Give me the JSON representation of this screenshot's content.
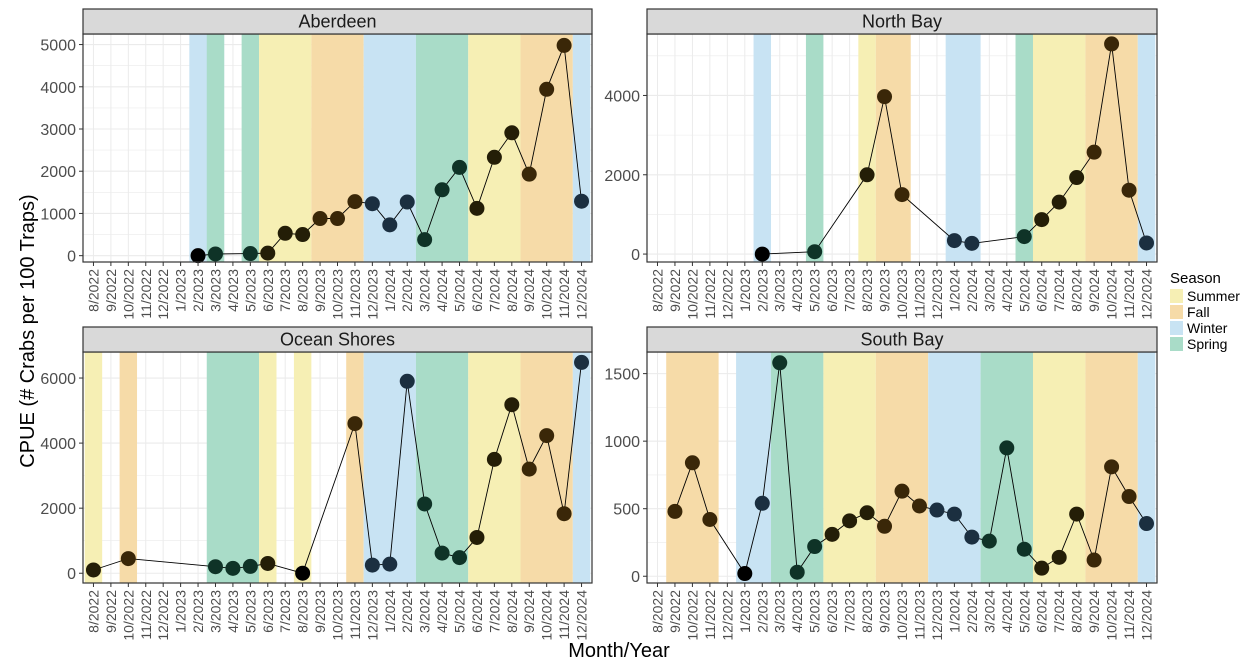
{
  "xlabel": "Month/Year",
  "ylabel": "CPUE (# Crabs per 100 Traps)",
  "legend": {
    "title": "Season",
    "items": [
      {
        "label": "Summer",
        "color": "#f6efb4"
      },
      {
        "label": "Fall",
        "color": "#f6dba8"
      },
      {
        "label": "Winter",
        "color": "#c8e3f3"
      },
      {
        "label": "Spring",
        "color": "#a9dcc8"
      }
    ]
  },
  "months": [
    "8/2022",
    "9/2022",
    "10/2022",
    "11/2022",
    "12/2022",
    "1/2023",
    "2/2023",
    "3/2023",
    "4/2023",
    "5/2023",
    "6/2023",
    "7/2023",
    "8/2023",
    "9/2023",
    "10/2023",
    "11/2023",
    "12/2023",
    "1/2024",
    "2/2024",
    "3/2024",
    "4/2024",
    "5/2024",
    "6/2024",
    "7/2024",
    "8/2024",
    "9/2024",
    "10/2024",
    "11/2024",
    "12/2024"
  ],
  "point_colors": {
    "Summer": "#241e07",
    "Fall": "#3a2708",
    "Winter": "#1b2f40",
    "Spring": "#0f3327",
    "start": "#000000"
  },
  "chart_data": [
    {
      "type": "line",
      "title": "Aberdeen",
      "ylim": [
        -150,
        5250
      ],
      "yticks": [
        0,
        1000,
        2000,
        3000,
        4000,
        5000
      ],
      "seasons": [
        {
          "season": "Winter",
          "start": "2/2023",
          "end": "3/2023"
        },
        {
          "season": "Spring",
          "start": "3/2023",
          "end": "3/2023"
        },
        {
          "season": "Spring",
          "start": "5/2023",
          "end": "5/2023"
        },
        {
          "season": "Summer",
          "start": "6/2023",
          "end": "8/2023"
        },
        {
          "season": "Fall",
          "start": "9/2023",
          "end": "11/2023"
        },
        {
          "season": "Winter",
          "start": "12/2023",
          "end": "2/2024"
        },
        {
          "season": "Spring",
          "start": "3/2024",
          "end": "5/2024"
        },
        {
          "season": "Summer",
          "start": "6/2024",
          "end": "8/2024"
        },
        {
          "season": "Fall",
          "start": "9/2024",
          "end": "11/2024"
        },
        {
          "season": "Winter",
          "start": "12/2024",
          "end": "12/2024"
        }
      ],
      "points": [
        {
          "x": "2/2023",
          "y": 0,
          "season": "start"
        },
        {
          "x": "3/2023",
          "y": 40,
          "season": "Spring"
        },
        {
          "x": "5/2023",
          "y": 50,
          "season": "Spring"
        },
        {
          "x": "6/2023",
          "y": 60,
          "season": "Summer"
        },
        {
          "x": "7/2023",
          "y": 530,
          "season": "Summer"
        },
        {
          "x": "8/2023",
          "y": 500,
          "season": "Summer"
        },
        {
          "x": "9/2023",
          "y": 880,
          "season": "Fall"
        },
        {
          "x": "10/2023",
          "y": 880,
          "season": "Fall"
        },
        {
          "x": "11/2023",
          "y": 1280,
          "season": "Fall"
        },
        {
          "x": "12/2023",
          "y": 1230,
          "season": "Winter"
        },
        {
          "x": "1/2024",
          "y": 730,
          "season": "Winter"
        },
        {
          "x": "2/2024",
          "y": 1270,
          "season": "Winter"
        },
        {
          "x": "3/2024",
          "y": 380,
          "season": "Spring"
        },
        {
          "x": "4/2024",
          "y": 1560,
          "season": "Spring"
        },
        {
          "x": "5/2024",
          "y": 2090,
          "season": "Spring"
        },
        {
          "x": "6/2024",
          "y": 1120,
          "season": "Summer"
        },
        {
          "x": "7/2024",
          "y": 2330,
          "season": "Summer"
        },
        {
          "x": "8/2024",
          "y": 2910,
          "season": "Summer"
        },
        {
          "x": "9/2024",
          "y": 1930,
          "season": "Fall"
        },
        {
          "x": "10/2024",
          "y": 3940,
          "season": "Fall"
        },
        {
          "x": "11/2024",
          "y": 4980,
          "season": "Fall"
        },
        {
          "x": "12/2024",
          "y": 1290,
          "season": "Winter"
        }
      ]
    },
    {
      "type": "line",
      "title": "North Bay",
      "ylim": [
        -200,
        5550
      ],
      "yticks": [
        0,
        2000,
        4000
      ],
      "seasons": [
        {
          "season": "Winter",
          "start": "2/2023",
          "end": "2/2023"
        },
        {
          "season": "Spring",
          "start": "5/2023",
          "end": "5/2023"
        },
        {
          "season": "Summer",
          "start": "8/2023",
          "end": "8/2023"
        },
        {
          "season": "Fall",
          "start": "9/2023",
          "end": "10/2023"
        },
        {
          "season": "Winter",
          "start": "1/2024",
          "end": "2/2024"
        },
        {
          "season": "Spring",
          "start": "5/2024",
          "end": "5/2024"
        },
        {
          "season": "Summer",
          "start": "6/2024",
          "end": "8/2024"
        },
        {
          "season": "Fall",
          "start": "9/2024",
          "end": "11/2024"
        },
        {
          "season": "Winter",
          "start": "12/2024",
          "end": "12/2024"
        }
      ],
      "points": [
        {
          "x": "2/2023",
          "y": 0,
          "season": "start"
        },
        {
          "x": "5/2023",
          "y": 60,
          "season": "Spring"
        },
        {
          "x": "8/2023",
          "y": 2000,
          "season": "Summer"
        },
        {
          "x": "9/2023",
          "y": 3970,
          "season": "Fall"
        },
        {
          "x": "10/2023",
          "y": 1500,
          "season": "Fall"
        },
        {
          "x": "1/2024",
          "y": 340,
          "season": "Winter"
        },
        {
          "x": "2/2024",
          "y": 270,
          "season": "Winter"
        },
        {
          "x": "5/2024",
          "y": 440,
          "season": "Spring"
        },
        {
          "x": "6/2024",
          "y": 870,
          "season": "Summer"
        },
        {
          "x": "7/2024",
          "y": 1310,
          "season": "Summer"
        },
        {
          "x": "8/2024",
          "y": 1930,
          "season": "Summer"
        },
        {
          "x": "9/2024",
          "y": 2570,
          "season": "Fall"
        },
        {
          "x": "10/2024",
          "y": 5300,
          "season": "Fall"
        },
        {
          "x": "11/2024",
          "y": 1610,
          "season": "Fall"
        },
        {
          "x": "12/2024",
          "y": 280,
          "season": "Winter"
        }
      ]
    },
    {
      "type": "line",
      "title": "Ocean Shores",
      "ylim": [
        -300,
        6800
      ],
      "yticks": [
        0,
        2000,
        4000,
        6000
      ],
      "seasons": [
        {
          "season": "Summer",
          "start": "8/2022",
          "end": "8/2022"
        },
        {
          "season": "Fall",
          "start": "10/2022",
          "end": "10/2022"
        },
        {
          "season": "Spring",
          "start": "3/2023",
          "end": "5/2023"
        },
        {
          "season": "Summer",
          "start": "6/2023",
          "end": "6/2023"
        },
        {
          "season": "Summer",
          "start": "8/2023",
          "end": "8/2023"
        },
        {
          "season": "Fall",
          "start": "11/2023",
          "end": "11/2023"
        },
        {
          "season": "Winter",
          "start": "12/2023",
          "end": "2/2024"
        },
        {
          "season": "Spring",
          "start": "3/2024",
          "end": "5/2024"
        },
        {
          "season": "Summer",
          "start": "6/2024",
          "end": "8/2024"
        },
        {
          "season": "Fall",
          "start": "9/2024",
          "end": "11/2024"
        },
        {
          "season": "Winter",
          "start": "12/2024",
          "end": "12/2024"
        }
      ],
      "points": [
        {
          "x": "8/2022",
          "y": 100,
          "season": "Summer"
        },
        {
          "x": "10/2022",
          "y": 450,
          "season": "Fall"
        },
        {
          "x": "3/2023",
          "y": 200,
          "season": "Spring"
        },
        {
          "x": "4/2023",
          "y": 150,
          "season": "Spring"
        },
        {
          "x": "5/2023",
          "y": 210,
          "season": "Spring"
        },
        {
          "x": "6/2023",
          "y": 300,
          "season": "Summer"
        },
        {
          "x": "8/2023",
          "y": 0,
          "season": "start"
        },
        {
          "x": "11/2023",
          "y": 4600,
          "season": "Fall"
        },
        {
          "x": "12/2023",
          "y": 250,
          "season": "Winter"
        },
        {
          "x": "1/2024",
          "y": 280,
          "season": "Winter"
        },
        {
          "x": "2/2024",
          "y": 5900,
          "season": "Winter"
        },
        {
          "x": "3/2024",
          "y": 2130,
          "season": "Spring"
        },
        {
          "x": "4/2024",
          "y": 620,
          "season": "Spring"
        },
        {
          "x": "5/2024",
          "y": 480,
          "season": "Spring"
        },
        {
          "x": "6/2024",
          "y": 1100,
          "season": "Summer"
        },
        {
          "x": "7/2024",
          "y": 3500,
          "season": "Summer"
        },
        {
          "x": "8/2024",
          "y": 5180,
          "season": "Summer"
        },
        {
          "x": "9/2024",
          "y": 3200,
          "season": "Fall"
        },
        {
          "x": "10/2024",
          "y": 4230,
          "season": "Fall"
        },
        {
          "x": "11/2024",
          "y": 1830,
          "season": "Fall"
        },
        {
          "x": "12/2024",
          "y": 6480,
          "season": "Winter"
        }
      ]
    },
    {
      "type": "line",
      "title": "South Bay",
      "ylim": [
        -50,
        1660
      ],
      "yticks": [
        0,
        500,
        1000,
        1500
      ],
      "seasons": [
        {
          "season": "Fall",
          "start": "9/2022",
          "end": "11/2022"
        },
        {
          "season": "Winter",
          "start": "1/2023",
          "end": "2/2023"
        },
        {
          "season": "Spring",
          "start": "3/2023",
          "end": "5/2023"
        },
        {
          "season": "Summer",
          "start": "6/2023",
          "end": "8/2023"
        },
        {
          "season": "Fall",
          "start": "9/2023",
          "end": "11/2023"
        },
        {
          "season": "Winter",
          "start": "12/2023",
          "end": "2/2024"
        },
        {
          "season": "Spring",
          "start": "3/2024",
          "end": "5/2024"
        },
        {
          "season": "Summer",
          "start": "6/2024",
          "end": "8/2024"
        },
        {
          "season": "Fall",
          "start": "9/2024",
          "end": "11/2024"
        },
        {
          "season": "Winter",
          "start": "12/2024",
          "end": "12/2024"
        }
      ],
      "points": [
        {
          "x": "9/2022",
          "y": 480,
          "season": "Fall"
        },
        {
          "x": "10/2022",
          "y": 840,
          "season": "Fall"
        },
        {
          "x": "11/2022",
          "y": 420,
          "season": "Fall"
        },
        {
          "x": "1/2023",
          "y": 20,
          "season": "start"
        },
        {
          "x": "2/2023",
          "y": 540,
          "season": "Winter"
        },
        {
          "x": "3/2023",
          "y": 1580,
          "season": "Spring"
        },
        {
          "x": "4/2023",
          "y": 30,
          "season": "Spring"
        },
        {
          "x": "5/2023",
          "y": 220,
          "season": "Spring"
        },
        {
          "x": "6/2023",
          "y": 310,
          "season": "Summer"
        },
        {
          "x": "7/2023",
          "y": 410,
          "season": "Summer"
        },
        {
          "x": "8/2023",
          "y": 470,
          "season": "Summer"
        },
        {
          "x": "9/2023",
          "y": 370,
          "season": "Fall"
        },
        {
          "x": "10/2023",
          "y": 630,
          "season": "Fall"
        },
        {
          "x": "11/2023",
          "y": 520,
          "season": "Fall"
        },
        {
          "x": "12/2023",
          "y": 490,
          "season": "Winter"
        },
        {
          "x": "1/2024",
          "y": 460,
          "season": "Winter"
        },
        {
          "x": "2/2024",
          "y": 290,
          "season": "Winter"
        },
        {
          "x": "3/2024",
          "y": 260,
          "season": "Spring"
        },
        {
          "x": "4/2024",
          "y": 950,
          "season": "Spring"
        },
        {
          "x": "5/2024",
          "y": 200,
          "season": "Spring"
        },
        {
          "x": "6/2024",
          "y": 60,
          "season": "Summer"
        },
        {
          "x": "7/2024",
          "y": 140,
          "season": "Summer"
        },
        {
          "x": "8/2024",
          "y": 460,
          "season": "Summer"
        },
        {
          "x": "9/2024",
          "y": 120,
          "season": "Fall"
        },
        {
          "x": "10/2024",
          "y": 810,
          "season": "Fall"
        },
        {
          "x": "11/2024",
          "y": 590,
          "season": "Fall"
        },
        {
          "x": "12/2024",
          "y": 390,
          "season": "Winter"
        }
      ]
    }
  ]
}
